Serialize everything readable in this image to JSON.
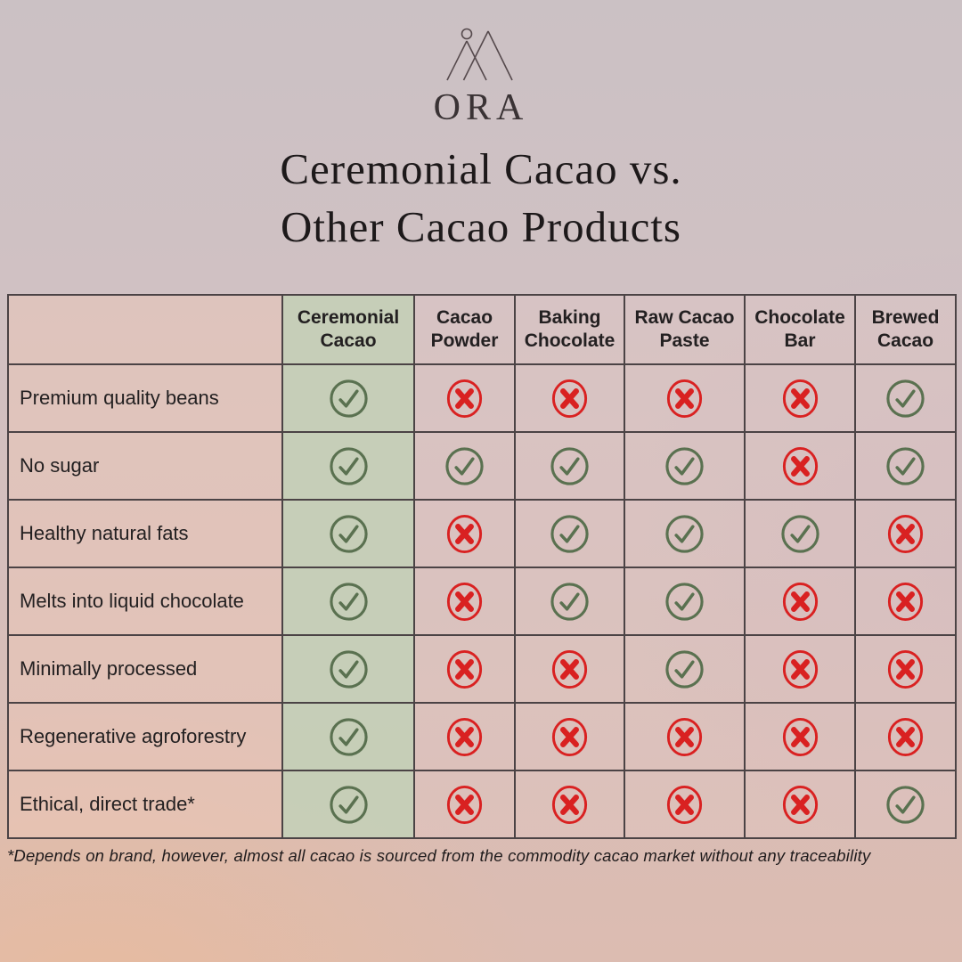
{
  "brand": {
    "name": "ORA"
  },
  "title": {
    "line1": "Ceremonial Cacao vs.",
    "line2": "Other Cacao Products"
  },
  "chart_data": {
    "type": "table",
    "title": "Ceremonial Cacao vs. Other Cacao Products",
    "columns": [
      "Ceremonial Cacao",
      "Cacao Powder",
      "Baking Chocolate",
      "Raw Cacao Paste",
      "Chocolate Bar",
      "Brewed Cacao"
    ],
    "rows": [
      {
        "label": "Premium quality beans",
        "values": [
          "yes",
          "no",
          "no",
          "no",
          "no",
          "yes"
        ]
      },
      {
        "label": "No sugar",
        "values": [
          "yes",
          "yes",
          "yes",
          "yes",
          "no",
          "yes"
        ]
      },
      {
        "label": "Healthy natural fats",
        "values": [
          "yes",
          "no",
          "yes",
          "yes",
          "yes",
          "no"
        ]
      },
      {
        "label": "Melts into liquid chocolate",
        "values": [
          "yes",
          "no",
          "yes",
          "yes",
          "no",
          "no"
        ]
      },
      {
        "label": "Minimally processed",
        "values": [
          "yes",
          "no",
          "no",
          "yes",
          "no",
          "no"
        ]
      },
      {
        "label": "Regenerative agroforestry",
        "values": [
          "yes",
          "no",
          "no",
          "no",
          "no",
          "no"
        ]
      },
      {
        "label": "Ethical, direct trade*",
        "values": [
          "yes",
          "no",
          "no",
          "no",
          "no",
          "yes"
        ]
      }
    ],
    "highlighted_column": "Ceremonial Cacao",
    "legend_note": "yes = green circled check, no = red circled cross"
  },
  "footnote": "*Depends on brand, however, almost all cacao is sourced from the commodity cacao market without any traceability",
  "colors": {
    "check_green": "#5a7150",
    "cross_red": "#d92121",
    "highlight_green": "#c4cfb7",
    "table_border": "#4b4345",
    "title_text": "#1d191a"
  }
}
